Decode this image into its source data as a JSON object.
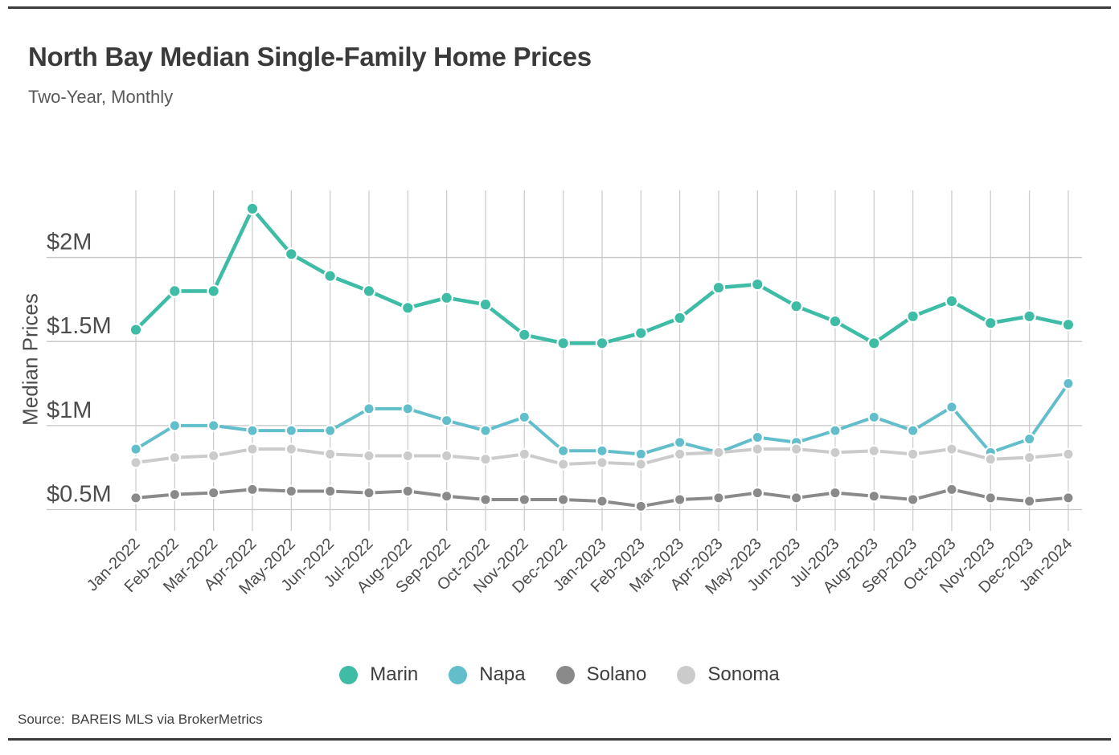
{
  "page": {
    "title": "North Bay Median Single-Family Home Prices",
    "subtitle": "Two-Year, Monthly",
    "y_axis_label": "Median Prices",
    "source_prefix": "Source:",
    "source_text": "BAREIS MLS via BrokerMetrics"
  },
  "colors": {
    "marin": "#3ebca6",
    "napa": "#62becb",
    "solano": "#8a8a8a",
    "sonoma": "#cbcbcb",
    "grid_vertical": "#cdcdcd",
    "grid_horizontal": "#c6c6c6",
    "axis_text": "#4d4d4d",
    "rule": "#3b3b3b"
  },
  "chart_data": {
    "type": "line",
    "title": "North Bay Median Single-Family Home Prices",
    "subtitle": "Two-Year, Monthly",
    "xlabel": "",
    "ylabel": "Median Prices",
    "unit": "millions of USD",
    "ylim": [
      0.37,
      2.4
    ],
    "grid": "both",
    "legend_position": "bottom",
    "x": [
      "Jan-2022",
      "Feb-2022",
      "Mar-2022",
      "Apr-2022",
      "May-2022",
      "Jun-2022",
      "Jul-2022",
      "Aug-2022",
      "Sep-2022",
      "Oct-2022",
      "Nov-2022",
      "Dec-2022",
      "Jan-2023",
      "Feb-2023",
      "Mar-2023",
      "Apr-2023",
      "May-2023",
      "Jun-2023",
      "Jul-2023",
      "Aug-2023",
      "Sep-2023",
      "Oct-2023",
      "Nov-2023",
      "Dec-2023",
      "Jan-2024"
    ],
    "y_ticks": [
      {
        "value": 2.0,
        "label": "$2M"
      },
      {
        "value": 1.5,
        "label": "$1.5M"
      },
      {
        "value": 1.0,
        "label": "$1M"
      },
      {
        "value": 0.5,
        "label": "$0.5M"
      }
    ],
    "series": [
      {
        "name": "Marin",
        "color": "#3ebca6",
        "values": [
          1.57,
          1.8,
          1.8,
          2.29,
          2.02,
          1.89,
          1.8,
          1.7,
          1.76,
          1.72,
          1.54,
          1.49,
          1.49,
          1.55,
          1.64,
          1.82,
          1.84,
          1.71,
          1.62,
          1.49,
          1.65,
          1.74,
          1.61,
          1.65,
          1.6
        ]
      },
      {
        "name": "Napa",
        "color": "#62becb",
        "values": [
          0.86,
          1.0,
          1.0,
          0.97,
          0.97,
          0.97,
          1.1,
          1.1,
          1.03,
          0.97,
          1.05,
          0.85,
          0.85,
          0.83,
          0.9,
          0.84,
          0.93,
          0.9,
          0.97,
          1.05,
          0.97,
          1.11,
          0.84,
          0.92,
          1.25
        ]
      },
      {
        "name": "Solano",
        "color": "#8a8a8a",
        "values": [
          0.57,
          0.59,
          0.6,
          0.62,
          0.61,
          0.61,
          0.6,
          0.61,
          0.58,
          0.56,
          0.56,
          0.56,
          0.55,
          0.52,
          0.56,
          0.57,
          0.6,
          0.57,
          0.6,
          0.58,
          0.56,
          0.62,
          0.57,
          0.55,
          0.57
        ]
      },
      {
        "name": "Sonoma",
        "color": "#cbcbcb",
        "values": [
          0.78,
          0.81,
          0.82,
          0.86,
          0.86,
          0.83,
          0.82,
          0.82,
          0.82,
          0.8,
          0.83,
          0.77,
          0.78,
          0.77,
          0.83,
          0.84,
          0.86,
          0.86,
          0.84,
          0.85,
          0.83,
          0.86,
          0.8,
          0.81,
          0.83
        ]
      }
    ]
  }
}
